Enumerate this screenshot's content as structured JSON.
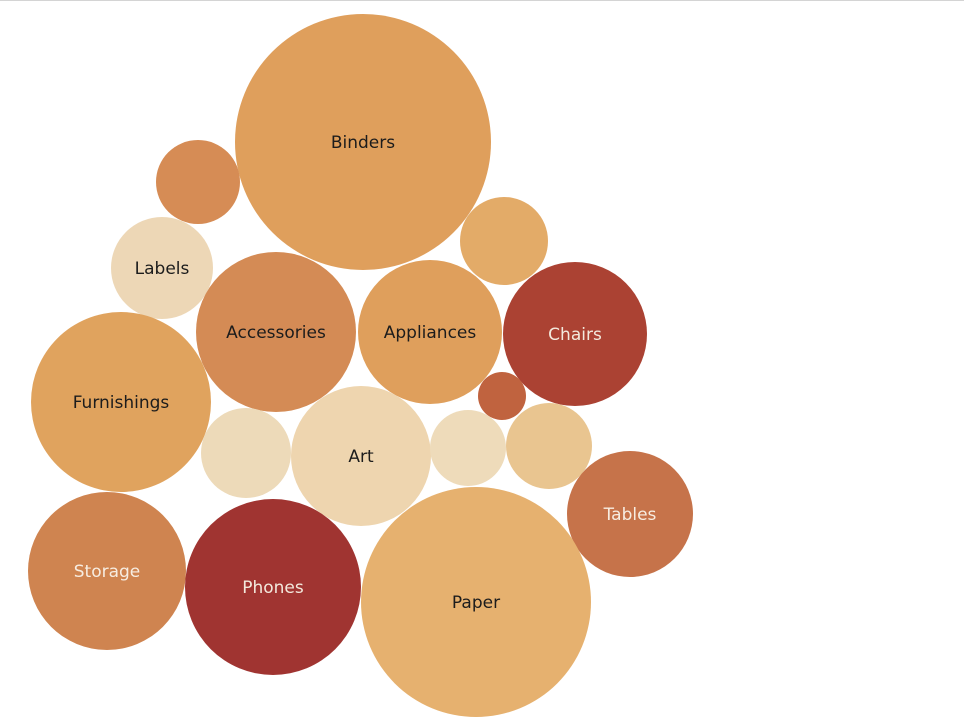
{
  "chart_data": {
    "type": "bubble",
    "title": "",
    "bubbles": [
      {
        "label": "Binders",
        "color": "#df9f5c",
        "text_color": "#1c1c1c"
      },
      {
        "label": "",
        "color": "#d68c55",
        "text_color": "#1c1c1c"
      },
      {
        "label": "",
        "color": "#e3ab68",
        "text_color": "#1c1c1c"
      },
      {
        "label": "Labels",
        "color": "#edd7b6",
        "text_color": "#1c1c1c"
      },
      {
        "label": "Accessories",
        "color": "#d48b55",
        "text_color": "#1c1c1c"
      },
      {
        "label": "Appliances",
        "color": "#df9f5c",
        "text_color": "#1c1c1c"
      },
      {
        "label": "Chairs",
        "color": "#ab4233",
        "text_color": "#f3e9dd"
      },
      {
        "label": "",
        "color": "#c0633f",
        "text_color": "#1c1c1c"
      },
      {
        "label": "Furnishings",
        "color": "#e0a35e",
        "text_color": "#1c1c1c"
      },
      {
        "label": "",
        "color": "#eddab9",
        "text_color": "#1c1c1c"
      },
      {
        "label": "Art",
        "color": "#eed5af",
        "text_color": "#1c1c1c"
      },
      {
        "label": "",
        "color": "#eedbba",
        "text_color": "#1c1c1c"
      },
      {
        "label": "",
        "color": "#e9c590",
        "text_color": "#1c1c1c"
      },
      {
        "label": "Tables",
        "color": "#c6734a",
        "text_color": "#f7ede1"
      },
      {
        "label": "Storage",
        "color": "#cf8450",
        "text_color": "#f7ede1"
      },
      {
        "label": "Phones",
        "color": "#a03431",
        "text_color": "#f3e9dd"
      },
      {
        "label": "Paper",
        "color": "#e6b16f",
        "text_color": "#1c1c1c"
      }
    ]
  }
}
